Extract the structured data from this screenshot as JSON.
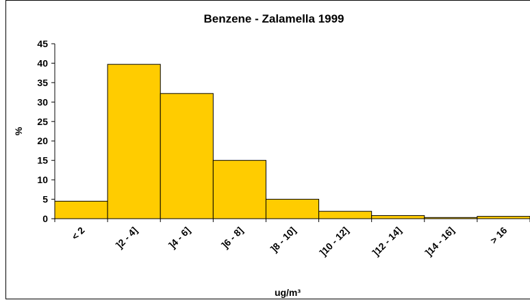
{
  "chart_data": {
    "type": "bar",
    "title": "Benzene - Zalamella 1999",
    "x_label": "ug/m³",
    "y_label": "%",
    "categories": [
      "< 2",
      "]2 - 4]",
      "]4 - 6]",
      "]6 - 8]",
      "]8 - 10]",
      "]10 - 12]",
      "]12 - 14]",
      "]14 - 16]",
      "> 16"
    ],
    "values": [
      4.5,
      39.7,
      32.2,
      15,
      5,
      1.9,
      0.8,
      0.3,
      0.6
    ],
    "color": "#ffcc00",
    "ylim": [
      0,
      45
    ],
    "yticks": [
      0,
      5,
      10,
      15,
      20,
      25,
      30,
      35,
      40,
      45
    ],
    "grid": false
  }
}
